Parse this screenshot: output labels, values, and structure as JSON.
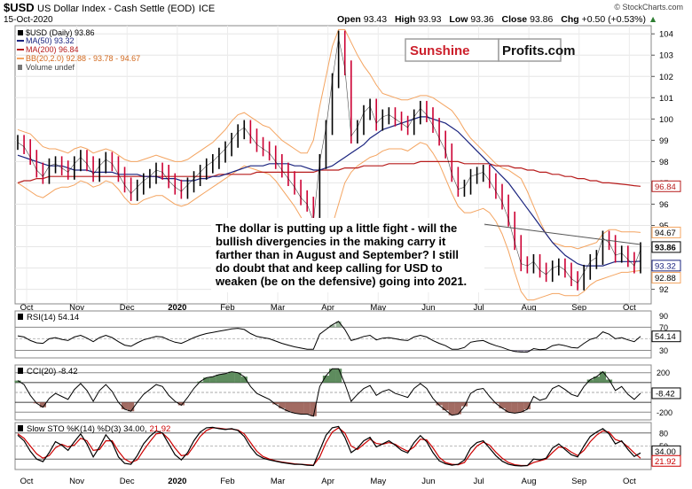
{
  "header": {
    "symbol": "$USD",
    "name": "US Dollar Index - Cash Settle (EOD)",
    "exchange": "ICE",
    "date": "15-Oct-2020",
    "open_label": "Open",
    "open": "93.43",
    "high_label": "High",
    "high": "93.93",
    "low_label": "Low",
    "low": "93.36",
    "close_label": "Close",
    "close": "93.86",
    "chg_label": "Chg",
    "chg": "+0.50 (+0.53%)",
    "attribution": "© StockCharts.com"
  },
  "legend": {
    "price": "$USD (Daily) 93.86",
    "ma50": "MA(50) 93.32",
    "ma200": "MA(200) 96.84",
    "bb": "BB(20,2.0) 92.88 - 93.78 - 94.67",
    "volume": "Volume undef"
  },
  "watermark": {
    "part1": "Sunshine",
    "part2": "Profits.com"
  },
  "annotation": {
    "lines": [
      "The dollar is putting up a little fight - will the",
      "bullish divergencies in the making carry it",
      "farther than in August and September? I still",
      "do doubt that and keep calling for USD to",
      "weaken (be on the defensive) going into 2021."
    ]
  },
  "indicators": {
    "rsi_label": "RSI(14) 54.14",
    "cci_label": "CCI(20) -8.42",
    "sto_label_main": "Slow STO %K(14) %D(3) 34.00,",
    "sto_label_d": "21.92"
  },
  "colors": {
    "price": "#000000",
    "up": "#000000",
    "down": "#cc0033",
    "ma50": "#1a237e",
    "ma200": "#b71c1c",
    "bb": "#f4a460",
    "cci_pos": "#5e8c5e",
    "cci_neg": "#a26b62",
    "rsi_fill": "#7a6b96",
    "sto_k": "#000000",
    "sto_d": "#cc0000",
    "wm_red": "#cc1f2b",
    "wm_box": "#9e9e9e"
  },
  "chart_data": [
    {
      "type": "line",
      "panel": "price",
      "title": "US Dollar Index - Cash Settle (EOD)",
      "x_ticks": [
        "Oct",
        "Nov",
        "Dec",
        "2020",
        "Feb",
        "Mar",
        "Apr",
        "May",
        "Jun",
        "Jul",
        "Aug",
        "Sep",
        "Oct"
      ],
      "y_ticks": [
        92,
        93,
        94,
        95,
        96,
        97,
        98,
        99,
        100,
        101,
        102,
        103,
        104
      ],
      "ylim": [
        91.4,
        104.3
      ],
      "price_labels": [
        "96.84",
        "94.67",
        "93.86",
        "93.32",
        "92.88"
      ],
      "series": [
        {
          "name": "$USD (Daily) 93.86",
          "values": [
            98.9,
            98.7,
            98.2,
            97.6,
            97.3,
            97.8,
            97.9,
            97.7,
            97.5,
            97.9,
            98.2,
            97.9,
            97.4,
            97.8,
            98.1,
            97.9,
            97.4,
            96.9,
            96.5,
            96.8,
            97.1,
            97.3,
            97.6,
            97.5,
            97.1,
            96.8,
            96.6,
            96.9,
            97.2,
            97.5,
            97.8,
            98.0,
            98.3,
            98.6,
            99.0,
            99.4,
            99.6,
            99.2,
            98.8,
            98.6,
            98.4,
            98.0,
            97.6,
            97.2,
            96.8,
            96.3,
            96.0,
            95.2,
            98.0,
            99.6,
            101.8,
            103.8,
            102.4,
            99.2,
            99.6,
            100.3,
            100.6,
            99.8,
            100.1,
            100.2,
            100.0,
            99.8,
            99.6,
            100.1,
            100.5,
            100.2,
            99.7,
            99.1,
            98.5,
            97.4,
            96.7,
            96.8,
            97.3,
            97.4,
            97.5,
            97.1,
            96.6,
            96.1,
            95.3,
            94.2,
            93.2,
            93.1,
            93.3,
            92.9,
            92.7,
            93.0,
            93.1,
            92.9,
            92.5,
            92.3,
            92.8,
            93.3,
            93.5,
            94.4,
            94.2,
            93.6,
            93.7,
            93.4,
            93.1,
            93.86
          ]
        },
        {
          "name": "MA(50) 93.32",
          "values": [
            98.3,
            98.2,
            98.1,
            98.0,
            97.9,
            97.8,
            97.8,
            97.8,
            97.7,
            97.6,
            97.6,
            97.6,
            97.5,
            97.5,
            97.5,
            97.5,
            97.4,
            97.4,
            97.4,
            97.4,
            97.3,
            97.3,
            97.3,
            97.2,
            97.2,
            97.2,
            97.1,
            97.1,
            97.1,
            97.2,
            97.2,
            97.3,
            97.3,
            97.4,
            97.5,
            97.6,
            97.7,
            97.8,
            97.8,
            97.8,
            97.9,
            97.9,
            97.9,
            97.9,
            97.8,
            97.8,
            97.7,
            97.6,
            97.6,
            97.7,
            97.8,
            98.0,
            98.2,
            98.4,
            98.6,
            98.8,
            99.1,
            99.3,
            99.5,
            99.6,
            99.7,
            99.8,
            99.9,
            100.0,
            100.1,
            100.1,
            100.0,
            99.9,
            99.8,
            99.6,
            99.4,
            99.1,
            98.8,
            98.5,
            98.2,
            97.9,
            97.6,
            97.3,
            97.0,
            96.6,
            96.2,
            95.8,
            95.4,
            95.0,
            94.6,
            94.2,
            93.9,
            93.6,
            93.4,
            93.2,
            93.1,
            93.1,
            93.1,
            93.1,
            93.2,
            93.3,
            93.3,
            93.3,
            93.3,
            93.32
          ]
        },
        {
          "name": "MA(200) 96.84",
          "values": [
            97.0,
            97.1,
            97.1,
            97.2,
            97.2,
            97.3,
            97.3,
            97.3,
            97.3,
            97.3,
            97.3,
            97.3,
            97.3,
            97.3,
            97.3,
            97.3,
            97.3,
            97.3,
            97.3,
            97.3,
            97.3,
            97.3,
            97.3,
            97.3,
            97.3,
            97.3,
            97.3,
            97.3,
            97.3,
            97.3,
            97.3,
            97.3,
            97.4,
            97.4,
            97.4,
            97.4,
            97.4,
            97.4,
            97.5,
            97.5,
            97.5,
            97.5,
            97.5,
            97.5,
            97.5,
            97.5,
            97.5,
            97.5,
            97.6,
            97.6,
            97.6,
            97.6,
            97.7,
            97.7,
            97.7,
            97.8,
            97.8,
            97.8,
            97.8,
            97.9,
            97.9,
            97.9,
            97.9,
            97.9,
            98.0,
            98.0,
            98.0,
            98.0,
            98.0,
            98.0,
            98.0,
            97.9,
            97.9,
            97.9,
            97.9,
            97.9,
            97.8,
            97.8,
            97.8,
            97.7,
            97.7,
            97.6,
            97.6,
            97.5,
            97.5,
            97.4,
            97.4,
            97.3,
            97.3,
            97.2,
            97.2,
            97.1,
            97.1,
            97.0,
            97.0,
            96.97,
            96.94,
            96.91,
            96.87,
            96.84
          ]
        },
        {
          "name": "BB upper",
          "values": [
            99.5,
            99.4,
            99.3,
            99.0,
            98.7,
            98.6,
            98.6,
            98.5,
            98.4,
            98.6,
            98.7,
            98.6,
            98.4,
            98.5,
            98.6,
            98.5,
            98.3,
            98.1,
            98.0,
            98.0,
            98.1,
            98.2,
            98.3,
            98.2,
            98.1,
            98.0,
            98.0,
            98.1,
            98.3,
            98.5,
            98.7,
            98.9,
            99.2,
            99.5,
            99.9,
            100.2,
            100.3,
            100.1,
            99.9,
            99.7,
            99.6,
            99.3,
            99.0,
            98.8,
            98.6,
            98.4,
            98.4,
            99.0,
            100.6,
            102.0,
            103.4,
            104.2,
            104.2,
            103.6,
            103.0,
            102.5,
            102.1,
            101.6,
            101.2,
            101.1,
            101.0,
            100.9,
            100.9,
            101.0,
            101.1,
            101.1,
            101.0,
            100.8,
            100.6,
            100.4,
            100.0,
            99.5,
            99.1,
            98.8,
            98.5,
            98.2,
            97.9,
            97.7,
            97.6,
            97.4,
            97.2,
            96.6,
            95.9,
            95.2,
            94.6,
            94.2,
            94.1,
            94.0,
            94.0,
            93.9,
            94.0,
            94.1,
            94.2,
            94.6,
            94.8,
            94.8,
            94.7,
            94.7,
            94.7,
            94.67
          ]
        },
        {
          "name": "BB lower",
          "values": [
            97.0,
            96.8,
            96.6,
            96.4,
            96.3,
            96.5,
            96.7,
            96.8,
            96.8,
            96.9,
            97.1,
            97.0,
            96.8,
            96.9,
            97.1,
            97.0,
            96.7,
            96.3,
            96.0,
            96.0,
            96.2,
            96.3,
            96.4,
            96.4,
            96.2,
            96.0,
            95.9,
            96.0,
            96.2,
            96.4,
            96.6,
            96.8,
            97.0,
            97.2,
            97.4,
            97.6,
            97.8,
            97.7,
            97.6,
            97.5,
            97.4,
            97.1,
            96.7,
            96.3,
            95.9,
            95.4,
            94.9,
            94.2,
            94.0,
            94.3,
            95.0,
            96.0,
            97.0,
            97.5,
            97.8,
            98.0,
            98.2,
            98.3,
            98.5,
            98.6,
            98.6,
            98.6,
            98.5,
            98.7,
            98.9,
            98.8,
            98.4,
            97.9,
            97.2,
            96.5,
            95.9,
            95.6,
            95.6,
            95.7,
            95.8,
            95.6,
            95.2,
            94.6,
            93.8,
            92.8,
            91.9,
            91.5,
            91.5,
            91.6,
            91.7,
            91.8,
            91.8,
            91.7,
            91.7,
            91.7,
            91.9,
            92.2,
            92.4,
            92.5,
            92.6,
            92.7,
            92.8,
            92.8,
            92.85,
            92.88
          ]
        }
      ]
    },
    {
      "type": "line",
      "panel": "rsi",
      "title": "RSI(14) 54.14",
      "y_ticks": [
        30,
        50,
        70,
        90
      ],
      "ylim": [
        20,
        95
      ],
      "value_label": "54.14",
      "series": [
        {
          "name": "RSI(14) 54.14",
          "values": [
            55,
            53,
            47,
            43,
            42,
            50,
            52,
            49,
            47,
            53,
            56,
            51,
            45,
            52,
            56,
            52,
            45,
            39,
            37,
            43,
            48,
            51,
            54,
            53,
            48,
            44,
            42,
            47,
            52,
            56,
            59,
            61,
            63,
            65,
            67,
            68,
            66,
            59,
            54,
            52,
            50,
            46,
            42,
            39,
            36,
            34,
            32,
            32,
            58,
            66,
            74,
            80,
            66,
            47,
            50,
            54,
            56,
            48,
            51,
            52,
            50,
            48,
            47,
            53,
            56,
            53,
            47,
            42,
            38,
            32,
            32,
            35,
            44,
            46,
            47,
            42,
            38,
            35,
            31,
            28,
            27,
            27,
            33,
            31,
            32,
            38,
            40,
            38,
            35,
            34,
            42,
            49,
            52,
            62,
            58,
            50,
            52,
            48,
            45,
            54.14
          ]
        }
      ]
    },
    {
      "type": "area",
      "panel": "cci",
      "title": "CCI(20) -8.42",
      "y_ticks": [
        -200,
        0,
        200
      ],
      "ylim": [
        -260,
        260
      ],
      "value_label": "-8.42",
      "series": [
        {
          "name": "CCI(20) -8.42",
          "values": [
            120,
            80,
            -30,
            -110,
            -150,
            -60,
            -10,
            -40,
            -70,
            30,
            90,
            20,
            -90,
            20,
            80,
            10,
            -100,
            -170,
            -190,
            -100,
            -20,
            30,
            80,
            60,
            -30,
            -90,
            -130,
            -50,
            40,
            110,
            150,
            160,
            180,
            190,
            210,
            200,
            160,
            60,
            -10,
            -40,
            -70,
            -120,
            -160,
            -190,
            -210,
            -220,
            -220,
            -240,
            60,
            170,
            240,
            240,
            90,
            -90,
            -20,
            40,
            70,
            -30,
            10,
            30,
            -10,
            -30,
            -50,
            40,
            90,
            40,
            -60,
            -130,
            -180,
            -230,
            -220,
            -140,
            -10,
            30,
            40,
            -40,
            -110,
            -160,
            -200,
            -210,
            -200,
            -170,
            -40,
            -80,
            -60,
            40,
            70,
            30,
            -20,
            -40,
            60,
            130,
            160,
            210,
            130,
            20,
            60,
            -20,
            -70,
            -8.42
          ]
        }
      ]
    },
    {
      "type": "line",
      "panel": "stochastic",
      "title": "Slow STO %K(14) %D(3) 34.00, 21.92",
      "y_ticks": [
        20,
        50,
        80
      ],
      "ylim": [
        0,
        100
      ],
      "value_labels": [
        "34.00",
        "21.92"
      ],
      "series": [
        {
          "name": "%K(14)",
          "values": [
            75,
            62,
            38,
            20,
            14,
            35,
            60,
            52,
            40,
            60,
            78,
            55,
            25,
            48,
            76,
            58,
            25,
            10,
            8,
            28,
            55,
            72,
            85,
            80,
            55,
            30,
            18,
            35,
            62,
            82,
            92,
            93,
            90,
            88,
            90,
            86,
            72,
            48,
            30,
            22,
            18,
            15,
            12,
            10,
            8,
            8,
            6,
            5,
            40,
            75,
            92,
            95,
            70,
            35,
            45,
            62,
            70,
            48,
            55,
            62,
            52,
            40,
            34,
            58,
            74,
            60,
            35,
            16,
            9,
            6,
            8,
            18,
            45,
            58,
            62,
            45,
            28,
            15,
            8,
            5,
            4,
            5,
            20,
            18,
            22,
            45,
            55,
            42,
            30,
            25,
            50,
            72,
            82,
            90,
            78,
            55,
            62,
            42,
            26,
            34.0
          ]
        },
        {
          "name": "%D(3)",
          "values": [
            78,
            68,
            50,
            32,
            22,
            28,
            46,
            54,
            48,
            52,
            68,
            62,
            40,
            42,
            62,
            62,
            38,
            20,
            12,
            18,
            40,
            60,
            78,
            80,
            66,
            45,
            28,
            30,
            50,
            72,
            86,
            92,
            91,
            89,
            89,
            87,
            78,
            58,
            38,
            26,
            20,
            16,
            13,
            11,
            9,
            8,
            7,
            6,
            25,
            58,
            82,
            92,
            80,
            50,
            42,
            54,
            66,
            56,
            54,
            58,
            54,
            45,
            38,
            48,
            66,
            64,
            46,
            24,
            12,
            8,
            7,
            12,
            32,
            50,
            59,
            52,
            36,
            22,
            12,
            7,
            5,
            5,
            12,
            16,
            20,
            35,
            48,
            46,
            36,
            28,
            40,
            60,
            75,
            85,
            82,
            65,
            60,
            48,
            34,
            21.92
          ]
        }
      ]
    }
  ]
}
